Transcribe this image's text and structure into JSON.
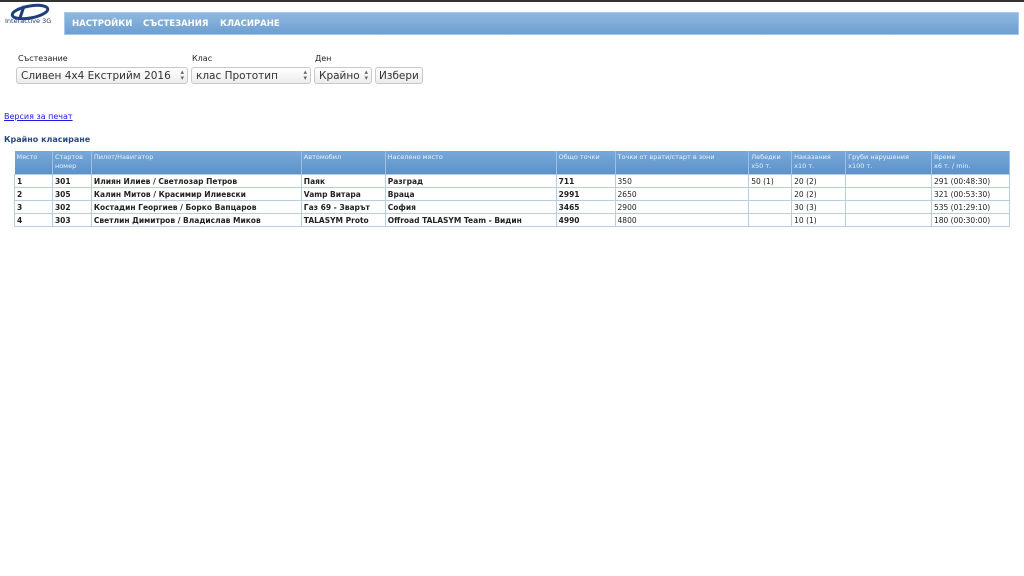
{
  "logo": {
    "text": "Interactive 3G"
  },
  "nav": {
    "items": [
      "НАСТРОЙКИ",
      "СЪСТЕЗАНИЯ",
      "КЛАСИРАНЕ"
    ]
  },
  "filters": {
    "competition_label": "Състезание",
    "competition_value": "Сливен 4x4 Екстрийм 2016",
    "class_label": "Клас",
    "class_value": "клас Прототип",
    "day_label": "Ден",
    "day_value": "Крайно",
    "submit_label": "Избери"
  },
  "print_link": "Версия за печат",
  "section_title": "Крайно класиране",
  "table": {
    "headers": [
      [
        "Място",
        ""
      ],
      [
        "Стартов",
        "номер"
      ],
      [
        "Пилот/Навигатор",
        ""
      ],
      [
        "Автомобил",
        ""
      ],
      [
        "Населено място",
        ""
      ],
      [
        "Общо точки",
        ""
      ],
      [
        "Точки от врати/старт в зони",
        ""
      ],
      [
        "Лебедки",
        "x50 т."
      ],
      [
        "Наказания",
        "x10 т."
      ],
      [
        "Груби нарушения",
        "x100 т."
      ],
      [
        "Време",
        "x6 т. / min."
      ]
    ],
    "rows": [
      [
        "1",
        "301",
        "Илиян Илиев / Светлозар Петров",
        "Паяк",
        "Разград",
        "711",
        "350",
        "50 (1)",
        "20 (2)",
        "",
        "291 (00:48:30)"
      ],
      [
        "2",
        "305",
        "Калин Митов / Красимир Илиевски",
        "Vamp Витара",
        "Враца",
        "2991",
        "2650",
        "",
        "20 (2)",
        "",
        "321 (00:53:30)"
      ],
      [
        "3",
        "302",
        "Костадин Георгиев / Борко Вапцаров",
        "Газ 69 - Зварът",
        "София",
        "3465",
        "2900",
        "",
        "30 (3)",
        "",
        "535 (01:29:10)"
      ],
      [
        "4",
        "303",
        "Светлин Димитров / Владислав Миков",
        "TALASYM Proto",
        "Offroad TALASYM Team - Видин",
        "4990",
        "4800",
        "",
        "10 (1)",
        "",
        "180 (00:30:00)"
      ]
    ]
  },
  "colors": {
    "nav": "#6d9fd2",
    "header": "#5d92c9",
    "link": "#1a1ae0",
    "title": "#2a4a7f"
  }
}
